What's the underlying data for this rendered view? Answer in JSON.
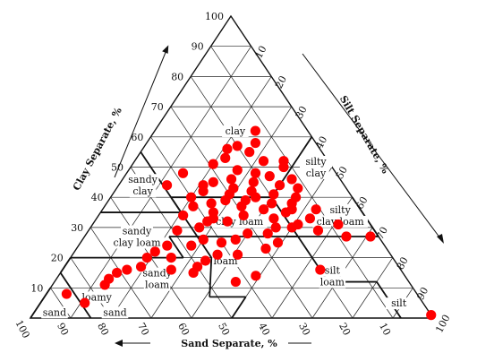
{
  "chart_data": {
    "type": "scatter",
    "title": "",
    "axes": {
      "clay": {
        "label": "Clay Separate, %",
        "ticks": [
          "10",
          "20",
          "30",
          "40",
          "50",
          "60",
          "70",
          "80",
          "90",
          "100"
        ]
      },
      "silt": {
        "label": "Silt Separate, %",
        "ticks": [
          "10",
          "20",
          "30",
          "40",
          "50",
          "60",
          "70",
          "80",
          "90",
          "100"
        ]
      },
      "sand": {
        "label": "Sand Separate, %",
        "ticks": [
          "100",
          "90",
          "80",
          "70",
          "60",
          "50",
          "40",
          "30",
          "20",
          "10"
        ]
      }
    },
    "grid": true,
    "point_color": "#ff0000",
    "texture_classes": [
      {
        "id": "clay",
        "lines": [
          "clay"
        ],
        "clay": 62,
        "sand": 18
      },
      {
        "id": "silty-clay",
        "lines": [
          "silty",
          "clay"
        ],
        "clay": 50,
        "sand": 4
      },
      {
        "id": "sandy-clay",
        "lines": [
          "sandy",
          "clay"
        ],
        "clay": 44,
        "sand": 50
      },
      {
        "id": "silty-clay-loam",
        "lines": [
          "silty",
          "clay loam"
        ],
        "clay": 34,
        "sand": 6
      },
      {
        "id": "clay-loam",
        "lines": [
          "clay loam"
        ],
        "clay": 32,
        "sand": 32
      },
      {
        "id": "sandy-clay-loam",
        "lines": [
          "sandy",
          "clay loam"
        ],
        "clay": 27,
        "sand": 60
      },
      {
        "id": "loam",
        "lines": [
          "loam"
        ],
        "clay": 19,
        "sand": 42
      },
      {
        "id": "silt-loam",
        "lines": [
          "silt",
          "loam"
        ],
        "clay": 14,
        "sand": 18
      },
      {
        "id": "sandy-loam",
        "lines": [
          "sandy",
          "loam"
        ],
        "clay": 13,
        "sand": 62
      },
      {
        "id": "loamy-sand",
        "lines": [
          "loamy"
        ],
        "clay": 7,
        "sand": 80
      },
      {
        "id": "sand-sand",
        "lines": [
          "sand"
        ],
        "clay": 2,
        "sand": 78
      },
      {
        "id": "sand",
        "lines": [
          "sand"
        ],
        "clay": 2,
        "sand": 93
      },
      {
        "id": "silt",
        "lines": [
          "silt"
        ],
        "clay": 5,
        "sand": 6
      }
    ],
    "points": [
      {
        "clay": 62,
        "sand": 13
      },
      {
        "clay": 58,
        "sand": 15
      },
      {
        "clay": 57,
        "sand": 20
      },
      {
        "clay": 56,
        "sand": 23
      },
      {
        "clay": 55,
        "sand": 18
      },
      {
        "clay": 53,
        "sand": 25
      },
      {
        "clay": 52,
        "sand": 16
      },
      {
        "clay": 51,
        "sand": 29
      },
      {
        "clay": 52,
        "sand": 11
      },
      {
        "clay": 50,
        "sand": 12
      },
      {
        "clay": 49,
        "sand": 24
      },
      {
        "clay": 48,
        "sand": 38
      },
      {
        "clay": 48,
        "sand": 20
      },
      {
        "clay": 47,
        "sand": 17
      },
      {
        "clay": 46,
        "sand": 27
      },
      {
        "clay": 46,
        "sand": 12
      },
      {
        "clay": 45,
        "sand": 22
      },
      {
        "clay": 45,
        "sand": 32
      },
      {
        "clay": 44,
        "sand": 35
      },
      {
        "clay": 44,
        "sand": 16
      },
      {
        "clay": 43,
        "sand": 28
      },
      {
        "clay": 43,
        "sand": 12
      },
      {
        "clay": 42,
        "sand": 24
      },
      {
        "clay": 42,
        "sand": 36
      },
      {
        "clay": 41,
        "sand": 19
      },
      {
        "clay": 41,
        "sand": 30
      },
      {
        "clay": 40,
        "sand": 40
      },
      {
        "clay": 40,
        "sand": 14
      },
      {
        "clay": 40,
        "sand": 24
      },
      {
        "clay": 39,
        "sand": 32
      },
      {
        "clay": 39,
        "sand": 27
      },
      {
        "clay": 38,
        "sand": 36
      },
      {
        "clay": 38,
        "sand": 21
      },
      {
        "clay": 38,
        "sand": 16
      },
      {
        "clay": 37,
        "sand": 41
      },
      {
        "clay": 37,
        "sand": 29
      },
      {
        "clay": 36,
        "sand": 24
      },
      {
        "clay": 36,
        "sand": 11
      },
      {
        "clay": 35,
        "sand": 37
      },
      {
        "clay": 35,
        "sand": 19
      },
      {
        "clay": 34,
        "sand": 30
      },
      {
        "clay": 34,
        "sand": 45
      },
      {
        "clay": 33,
        "sand": 23
      },
      {
        "clay": 33,
        "sand": 14
      },
      {
        "clay": 32,
        "sand": 40
      },
      {
        "clay": 32,
        "sand": 35
      },
      {
        "clay": 31,
        "sand": 18
      },
      {
        "clay": 31,
        "sand": 8
      },
      {
        "clay": 30,
        "sand": 43
      },
      {
        "clay": 30,
        "sand": 20
      },
      {
        "clay": 30,
        "sand": 24
      },
      {
        "clay": 29,
        "sand": 49
      },
      {
        "clay": 29,
        "sand": 14
      },
      {
        "clay": 28,
        "sand": 32
      },
      {
        "clay": 27,
        "sand": 8
      },
      {
        "clay": 27,
        "sand": 2
      },
      {
        "clay": 26,
        "sand": 36
      },
      {
        "clay": 26,
        "sand": 44
      },
      {
        "clay": 25,
        "sand": 40
      },
      {
        "clay": 24,
        "sand": 48
      },
      {
        "clay": 24,
        "sand": 54
      },
      {
        "clay": 23,
        "sand": 30
      },
      {
        "clay": 22,
        "sand": 58
      },
      {
        "clay": 21,
        "sand": 38
      },
      {
        "clay": 21,
        "sand": 43
      },
      {
        "clay": 20,
        "sand": 61
      },
      {
        "clay": 20,
        "sand": 55
      },
      {
        "clay": 19,
        "sand": 47
      },
      {
        "clay": 17,
        "sand": 50
      },
      {
        "clay": 17,
        "sand": 64
      },
      {
        "clay": 16,
        "sand": 57
      },
      {
        "clay": 16,
        "sand": 68
      },
      {
        "clay": 15,
        "sand": 71
      },
      {
        "clay": 15,
        "sand": 52
      },
      {
        "clay": 14,
        "sand": 37
      },
      {
        "clay": 13,
        "sand": 74
      },
      {
        "clay": 12,
        "sand": 43
      },
      {
        "clay": 11,
        "sand": 76
      },
      {
        "clay": 16,
        "sand": 20
      },
      {
        "clay": 8,
        "sand": 87
      },
      {
        "clay": 5,
        "sand": 84
      },
      {
        "clay": 33,
        "sand": 38
      },
      {
        "clay": 36,
        "sand": 17
      },
      {
        "clay": 25,
        "sand": 26
      },
      {
        "clay": 28,
        "sand": 27
      },
      {
        "clay": 44,
        "sand": 44
      },
      {
        "clay": 1,
        "sand": 0
      }
    ]
  }
}
